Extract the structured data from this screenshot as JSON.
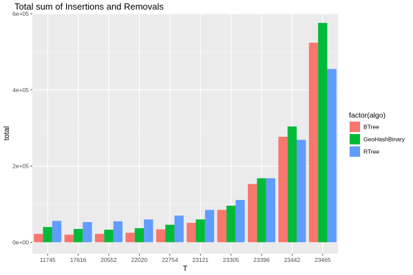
{
  "chart_data": {
    "type": "bar",
    "title": "Total sum of Insertions and Removals",
    "xlabel": "T",
    "ylabel": "total",
    "categories": [
      "11745",
      "17616",
      "20552",
      "22020",
      "22754",
      "23121",
      "23305",
      "23396",
      "23442",
      "23465"
    ],
    "series": [
      {
        "name": "BTree",
        "color": "#F8766D",
        "values": [
          22000,
          20000,
          22000,
          25000,
          34000,
          51000,
          85000,
          153000,
          277000,
          524000
        ]
      },
      {
        "name": "GeoHashBinary",
        "color": "#00BA38",
        "values": [
          40000,
          35000,
          33000,
          37000,
          46000,
          60000,
          96000,
          168000,
          304000,
          576000
        ]
      },
      {
        "name": "RTree",
        "color": "#619CFF",
        "values": [
          56000,
          53000,
          55000,
          60000,
          70000,
          85000,
          111000,
          168000,
          269000,
          455000
        ]
      }
    ],
    "ylim": [
      -30000,
      600000
    ],
    "yticks": [
      {
        "value": 0,
        "label": "0e+00"
      },
      {
        "value": 200000,
        "label": "2e+05"
      },
      {
        "value": 400000,
        "label": "4e+05"
      },
      {
        "value": 600000,
        "label": "6e+05"
      }
    ],
    "legend": {
      "title": "factor(algo)",
      "position": "right"
    },
    "grid": true
  }
}
